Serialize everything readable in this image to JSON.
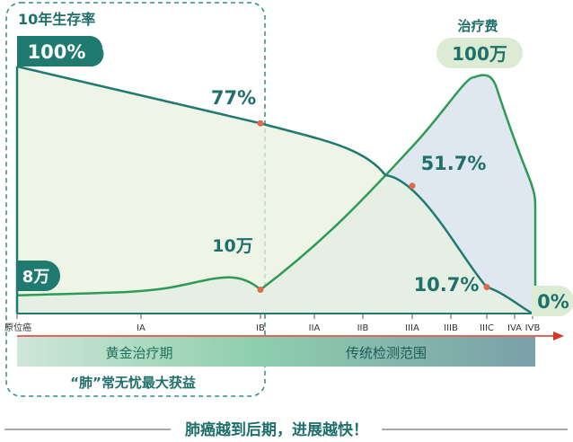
{
  "labels": {
    "survival_title": "10年生存率",
    "cost_title": "治疗费",
    "golden_period": "黄金治疗期",
    "traditional_range": "传统检测范围",
    "benefit_note": "“肺”常无忧最大获益",
    "footer": "肺癌越到后期，进展越快！"
  },
  "colors": {
    "survival_line": "#1f7a70",
    "survival_fill": "#e8f1df",
    "cost_line": "#2e9a55",
    "cost_fill": "#dde6ef",
    "marker": "#e06b4b",
    "badge_dark": "#1f7a70",
    "badge_light": "#dcebd3",
    "axis_arrow": "#d9342b",
    "band_left": "#cfe6d8",
    "band_mid": "#8fcfae",
    "band_right": "#7aa0a8"
  },
  "chart_data": {
    "type": "line",
    "categories": [
      "原位癌",
      "IA",
      "IB",
      "IIA",
      "IIB",
      "IIIA",
      "IIIB",
      "IIIC",
      "IVA",
      "IVB"
    ],
    "series": [
      {
        "name": "10年生存率",
        "unit": "%",
        "points": [
          {
            "stage": "原位癌",
            "value": 100,
            "label": "100%"
          },
          {
            "stage": "IB",
            "value": 77,
            "label": "77%"
          },
          {
            "stage": "IIIA",
            "value": 51.7,
            "label": "51.7%"
          },
          {
            "stage": "IIIC",
            "value": 10.7,
            "label": "10.7%"
          },
          {
            "stage": "IVB",
            "value": 0,
            "label": "0%"
          }
        ]
      },
      {
        "name": "治疗费",
        "unit": "万",
        "points": [
          {
            "stage": "原位癌",
            "value": 8,
            "label": "8万"
          },
          {
            "stage": "IB",
            "value": 10,
            "label": "10万"
          },
          {
            "stage": "IIIC",
            "value": 100,
            "label": "100万"
          },
          {
            "stage": "IVB",
            "value": 0,
            "label": ""
          }
        ]
      }
    ]
  }
}
